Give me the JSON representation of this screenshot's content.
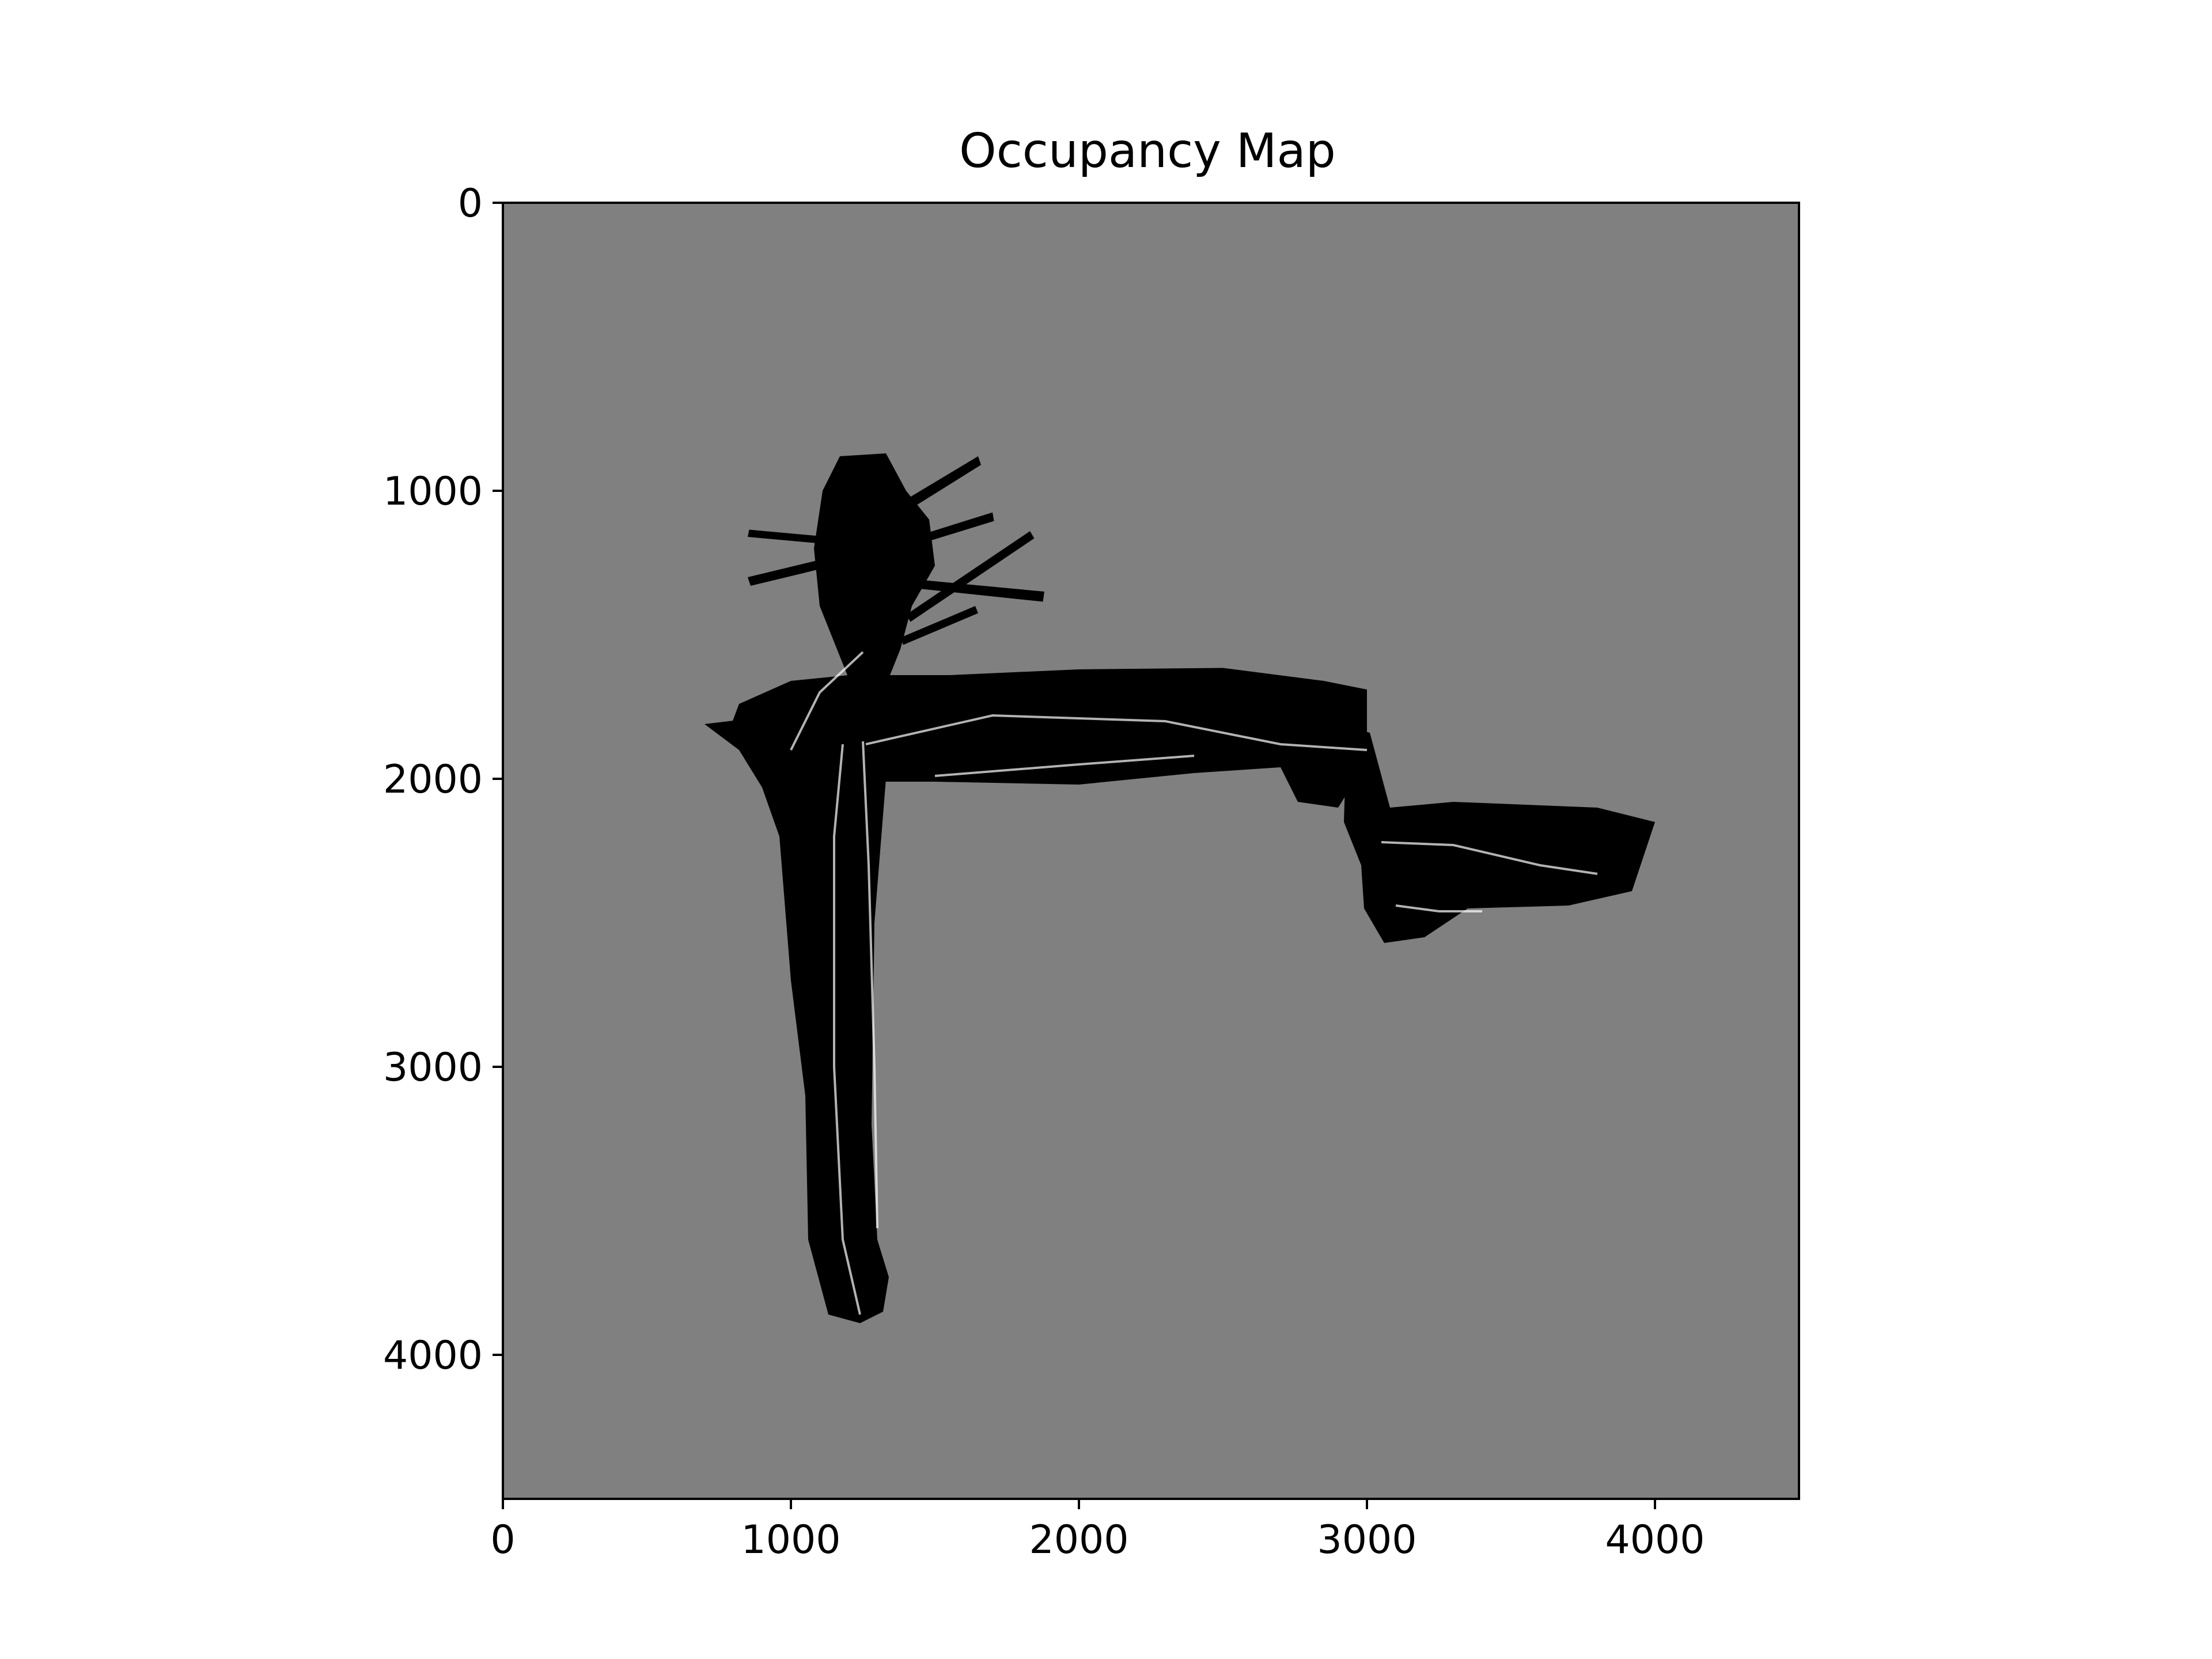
{
  "chart_data": {
    "type": "heatmap",
    "title": "Occupancy Map",
    "xlabel": "",
    "ylabel": "",
    "xlim": [
      0,
      4500
    ],
    "ylim": [
      4500,
      0
    ],
    "x_ticks": [
      0,
      1000,
      2000,
      3000,
      4000
    ],
    "y_ticks": [
      0,
      1000,
      2000,
      3000,
      4000
    ],
    "x_tick_labels": [
      "0",
      "1000",
      "2000",
      "3000",
      "4000"
    ],
    "y_tick_labels": [
      "0",
      "1000",
      "2000",
      "3000",
      "4000"
    ],
    "colormap": "gray",
    "background_value": 0.5,
    "background_color": "#808080",
    "occupied_color": "#000000",
    "free_color": "#ffffff",
    "grid": false,
    "legend": "none",
    "regions": [
      {
        "name": "vertical-corridor",
        "value": 0,
        "points": [
          [
            950,
            1780
          ],
          [
            1300,
            1780
          ],
          [
            1330,
            2000
          ],
          [
            1290,
            2500
          ],
          [
            1280,
            3200
          ],
          [
            1300,
            3600
          ],
          [
            1340,
            3730
          ],
          [
            1320,
            3850
          ],
          [
            1240,
            3890
          ],
          [
            1130,
            3860
          ],
          [
            1060,
            3600
          ],
          [
            1050,
            3100
          ],
          [
            1000,
            2700
          ],
          [
            960,
            2200
          ],
          [
            900,
            2030
          ],
          [
            820,
            1900
          ],
          [
            700,
            1810
          ]
        ]
      },
      {
        "name": "horizontal-corridor",
        "value": 0,
        "points": [
          [
            820,
            1740
          ],
          [
            1000,
            1660
          ],
          [
            1200,
            1640
          ],
          [
            1550,
            1640
          ],
          [
            2000,
            1620
          ],
          [
            2500,
            1615
          ],
          [
            2850,
            1660
          ],
          [
            3000,
            1690
          ],
          [
            3000,
            1940
          ],
          [
            2900,
            2100
          ],
          [
            2760,
            2080
          ],
          [
            2700,
            1960
          ],
          [
            2400,
            1980
          ],
          [
            2000,
            2020
          ],
          [
            1500,
            2010
          ],
          [
            1310,
            2010
          ],
          [
            1250,
            1950
          ],
          [
            1050,
            1920
          ],
          [
            900,
            1880
          ],
          [
            790,
            1820
          ]
        ]
      },
      {
        "name": "right-wing",
        "value": 0,
        "points": [
          [
            2930,
            1820
          ],
          [
            3010,
            1840
          ],
          [
            3080,
            2100
          ],
          [
            3300,
            2080
          ],
          [
            3800,
            2100
          ],
          [
            4000,
            2150
          ],
          [
            3920,
            2390
          ],
          [
            3700,
            2440
          ],
          [
            3350,
            2450
          ],
          [
            3200,
            2550
          ],
          [
            3060,
            2570
          ],
          [
            2990,
            2450
          ],
          [
            2980,
            2300
          ],
          [
            2920,
            2150
          ]
        ]
      },
      {
        "name": "top-cluster-stem",
        "value": 0,
        "points": [
          [
            1170,
            880
          ],
          [
            1330,
            870
          ],
          [
            1400,
            1000
          ],
          [
            1480,
            1100
          ],
          [
            1500,
            1260
          ],
          [
            1420,
            1400
          ],
          [
            1380,
            1550
          ],
          [
            1320,
            1700
          ],
          [
            1220,
            1700
          ],
          [
            1160,
            1550
          ],
          [
            1100,
            1400
          ],
          [
            1080,
            1200
          ],
          [
            1110,
            1000
          ]
        ]
      },
      {
        "name": "ray-1",
        "value": 0,
        "points": [
          [
            1250,
            1120
          ],
          [
            1650,
            880
          ],
          [
            1660,
            910
          ],
          [
            1260,
            1160
          ]
        ]
      },
      {
        "name": "ray-2",
        "value": 0,
        "points": [
          [
            1300,
            1200
          ],
          [
            1700,
            1075
          ],
          [
            1705,
            1105
          ],
          [
            1300,
            1230
          ]
        ]
      },
      {
        "name": "ray-3",
        "value": 0,
        "points": [
          [
            1350,
            1300
          ],
          [
            1880,
            1350
          ],
          [
            1875,
            1385
          ],
          [
            1350,
            1330
          ]
        ]
      },
      {
        "name": "ray-4",
        "value": 0,
        "points": [
          [
            1400,
            1430
          ],
          [
            1830,
            1140
          ],
          [
            1845,
            1165
          ],
          [
            1415,
            1455
          ]
        ]
      },
      {
        "name": "ray-5",
        "value": 0,
        "points": [
          [
            1150,
            1260
          ],
          [
            860,
            1330
          ],
          [
            850,
            1300
          ],
          [
            1140,
            1230
          ]
        ]
      },
      {
        "name": "ray-6",
        "value": 0,
        "points": [
          [
            1180,
            1190
          ],
          [
            850,
            1160
          ],
          [
            855,
            1135
          ],
          [
            1185,
            1165
          ]
        ]
      },
      {
        "name": "ray-7",
        "value": 0,
        "points": [
          [
            1380,
            1510
          ],
          [
            1640,
            1400
          ],
          [
            1650,
            1425
          ],
          [
            1390,
            1535
          ]
        ]
      }
    ],
    "free_traces": [
      {
        "name": "trace-a",
        "value": 1,
        "points": [
          [
            1180,
            1880
          ],
          [
            1150,
            2200
          ],
          [
            1150,
            3000
          ],
          [
            1180,
            3600
          ],
          [
            1240,
            3860
          ]
        ]
      },
      {
        "name": "trace-b",
        "value": 1,
        "points": [
          [
            1250,
            1870
          ],
          [
            1270,
            2300
          ],
          [
            1290,
            3000
          ],
          [
            1300,
            3560
          ]
        ]
      },
      {
        "name": "trace-c",
        "value": 1,
        "points": [
          [
            1260,
            1880
          ],
          [
            1700,
            1780
          ],
          [
            2300,
            1800
          ],
          [
            2700,
            1880
          ],
          [
            3000,
            1900
          ]
        ]
      },
      {
        "name": "trace-d",
        "value": 1,
        "points": [
          [
            1500,
            1990
          ],
          [
            2000,
            1950
          ],
          [
            2400,
            1920
          ]
        ]
      },
      {
        "name": "trace-e",
        "value": 1,
        "points": [
          [
            3050,
            2220
          ],
          [
            3300,
            2230
          ],
          [
            3600,
            2300
          ],
          [
            3800,
            2330
          ]
        ]
      },
      {
        "name": "trace-f",
        "value": 1,
        "points": [
          [
            1000,
            1900
          ],
          [
            1100,
            1700
          ],
          [
            1250,
            1560
          ]
        ]
      },
      {
        "name": "trace-g",
        "value": 1,
        "points": [
          [
            3100,
            2440
          ],
          [
            3250,
            2460
          ],
          [
            3400,
            2460
          ]
        ]
      }
    ]
  }
}
